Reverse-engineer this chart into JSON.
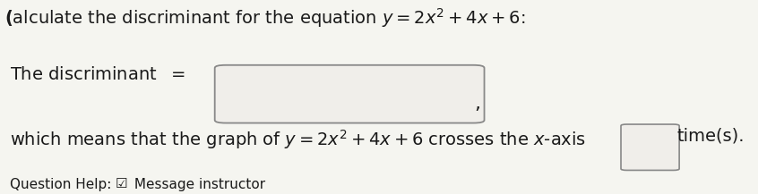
{
  "bg_color": "#f5f5f0",
  "text_color": "#1a1a1a",
  "box_facecolor": "#f0eeea",
  "box_edgecolor": "#888888",
  "font_size_main": 14,
  "font_size_small": 11,
  "line1_pre": "(",
  "line1_main": "alculate the discriminant for the equation $y = 2x^2 + 4x + 6$:",
  "line2_label": "The discriminant  $=$",
  "line3": "which means that the graph of $y = 2x^2 + 4x + 6$ crosses the $x$-axis",
  "line3_suffix": "time(s).",
  "line4_pre": "Question Help:  ",
  "line4_icon": "☑",
  "line4_post": "Message instructor"
}
